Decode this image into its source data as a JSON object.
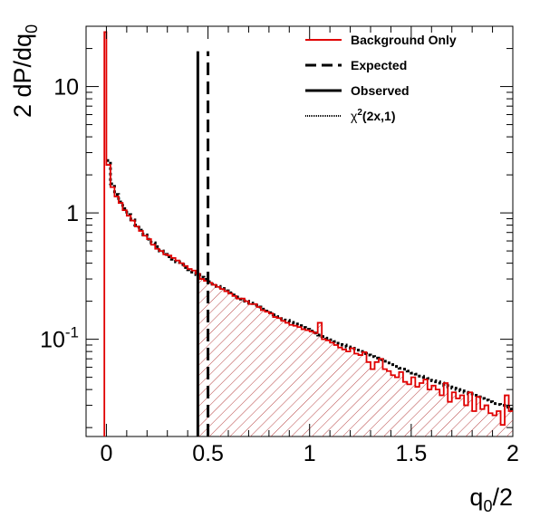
{
  "chart_data": {
    "type": "histogram",
    "xlabel_main": "q",
    "xlabel_sub": "0",
    "xlabel_tail": "/2",
    "ylabel_main": "2 dP/dq",
    "ylabel_sub": "0",
    "xlim": [
      -0.1,
      2.0
    ],
    "ylim": [
      0.017,
      30
    ],
    "yscale": "log",
    "x_ticks": [
      {
        "value": 0,
        "label": "0"
      },
      {
        "value": 0.5,
        "label": "0.5"
      },
      {
        "value": 1,
        "label": "1"
      },
      {
        "value": 1.5,
        "label": "1.5"
      },
      {
        "value": 2,
        "label": "2"
      }
    ],
    "y_ticks": [
      {
        "value": 0.1,
        "base": "10",
        "exp": "-1"
      },
      {
        "value": 1,
        "base": "1",
        "exp": ""
      },
      {
        "value": 10,
        "base": "10",
        "exp": ""
      }
    ],
    "legend_position": "top-right",
    "legend": {
      "background_only": "Background Only",
      "expected": "Expected",
      "observed": "Observed",
      "chi2_greek": "χ",
      "chi2_exp": "2",
      "chi2_tail": "(2x,1)"
    },
    "spike": {
      "x": -0.01,
      "value": 27
    },
    "bin_width": 0.02,
    "background_only": {
      "color": "#e00000",
      "x_start": 0.0,
      "values": [
        2.4,
        1.6,
        1.35,
        1.2,
        1.05,
        0.95,
        0.87,
        0.78,
        0.72,
        0.66,
        0.62,
        0.56,
        0.52,
        0.5,
        0.47,
        0.46,
        0.44,
        0.42,
        0.4,
        0.38,
        0.36,
        0.35,
        0.33,
        0.3,
        0.29,
        0.28,
        0.27,
        0.26,
        0.25,
        0.24,
        0.23,
        0.22,
        0.21,
        0.21,
        0.2,
        0.19,
        0.19,
        0.18,
        0.17,
        0.165,
        0.16,
        0.15,
        0.147,
        0.14,
        0.135,
        0.13,
        0.128,
        0.125,
        0.12,
        0.118,
        0.115,
        0.112,
        0.135,
        0.1,
        0.098,
        0.094,
        0.09,
        0.086,
        0.083,
        0.08,
        0.085,
        0.077,
        0.075,
        0.079,
        0.066,
        0.058,
        0.066,
        0.07,
        0.058,
        0.056,
        0.052,
        0.05,
        0.055,
        0.046,
        0.044,
        0.05,
        0.042,
        0.045,
        0.048,
        0.04,
        0.043,
        0.04,
        0.036,
        0.045,
        0.032,
        0.038,
        0.034,
        0.036,
        0.03,
        0.038,
        0.027,
        0.035,
        0.028,
        0.03,
        0.026,
        0.025,
        0.027,
        0.021,
        0.036,
        0.027
      ]
    },
    "chi2_reference": {
      "x_start": 0.0,
      "values": [
        2.6,
        1.7,
        1.4,
        1.22,
        1.08,
        0.97,
        0.88,
        0.8,
        0.73,
        0.67,
        0.62,
        0.58,
        0.54,
        0.5,
        0.47,
        0.45,
        0.43,
        0.41,
        0.39,
        0.37,
        0.355,
        0.34,
        0.325,
        0.31,
        0.298,
        0.285,
        0.273,
        0.262,
        0.252,
        0.242,
        0.233,
        0.224,
        0.216,
        0.208,
        0.2,
        0.193,
        0.186,
        0.18,
        0.173,
        0.167,
        0.162,
        0.156,
        0.151,
        0.146,
        0.141,
        0.136,
        0.132,
        0.128,
        0.124,
        0.12,
        0.116,
        0.112,
        0.108,
        0.105,
        0.102,
        0.099,
        0.096,
        0.093,
        0.09,
        0.087,
        0.085,
        0.082,
        0.08,
        0.077,
        0.075,
        0.073,
        0.071,
        0.069,
        0.067,
        0.065,
        0.063,
        0.061,
        0.059,
        0.058,
        0.056,
        0.054,
        0.053,
        0.051,
        0.05,
        0.049,
        0.047,
        0.046,
        0.045,
        0.043,
        0.042,
        0.041,
        0.04,
        0.039,
        0.038,
        0.037,
        0.036,
        0.035,
        0.034,
        0.033,
        0.032,
        0.031,
        0.0305,
        0.03,
        0.029,
        0.028
      ]
    },
    "expected_line": {
      "x": 0.5,
      "y_top": 19
    },
    "observed_line": {
      "x": 0.45,
      "y_top": 19
    },
    "hatched_region_from_x": 0.45
  }
}
